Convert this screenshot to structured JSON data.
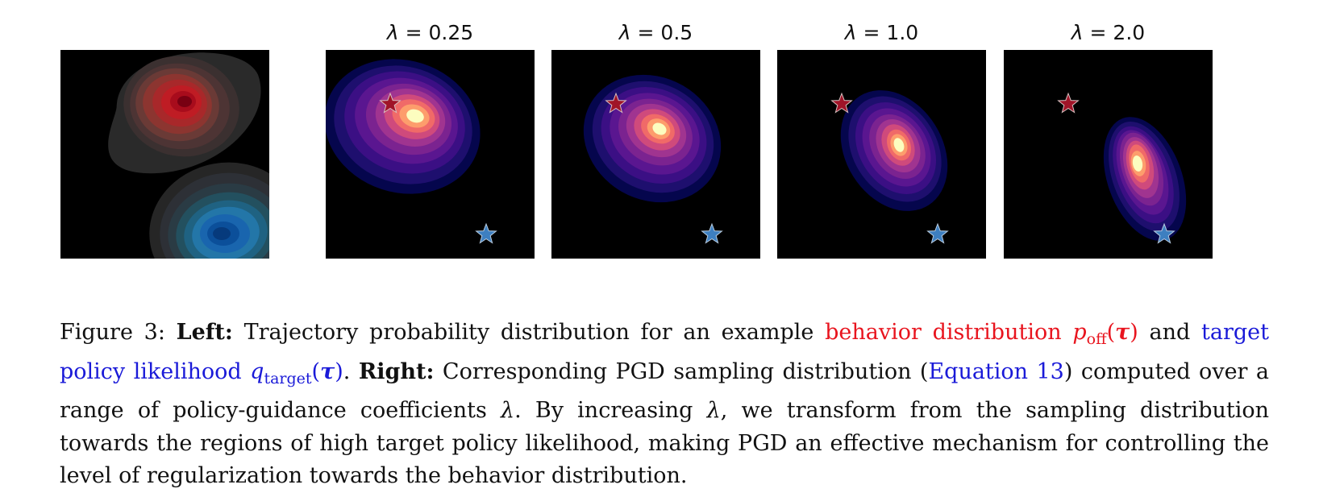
{
  "figure": {
    "panels": [
      {
        "title_symbol": "",
        "title_value": ""
      },
      {
        "title_symbol": "λ",
        "title_value": " = 0.25"
      },
      {
        "title_symbol": "λ",
        "title_value": " = 0.5"
      },
      {
        "title_symbol": "λ",
        "title_value": " = 1.0"
      },
      {
        "title_symbol": "λ",
        "title_value": " = 2.0"
      }
    ],
    "colors": {
      "behavior": "#e8141e",
      "target": "#1a1ad8",
      "behavior_star": "#b01a28",
      "target_star": "#3d7fc0"
    },
    "colormap_left_behavior": "Reds",
    "colormap_left_target": "Blues",
    "colormap_right": "magma"
  },
  "caption": {
    "label": "Figure 3:",
    "left_heading": "Left:",
    "text_1": " Trajectory probability distribution for an example ",
    "behavior_text": "behavior distribution ",
    "behavior_symbol": "p",
    "behavior_sub": "off",
    "tau": "τ",
    "text_2": " and ",
    "target_text": "target policy likelihood ",
    "target_symbol": "q",
    "target_sub": "target",
    "text_3": ". ",
    "right_heading": "Right:",
    "text_4": " Corresponding PGD sampling distribution (",
    "equation_ref": "Equation 13",
    "text_5": ") computed over a range of policy-guidance coefficients ",
    "lambda": "λ",
    "text_6": ". By increasing ",
    "text_7": ", we transform from the sampling distribution towards the regions of high target policy likelihood, making PGD an effective mechanism for controlling the level of regularization towards the behavior distribution."
  }
}
